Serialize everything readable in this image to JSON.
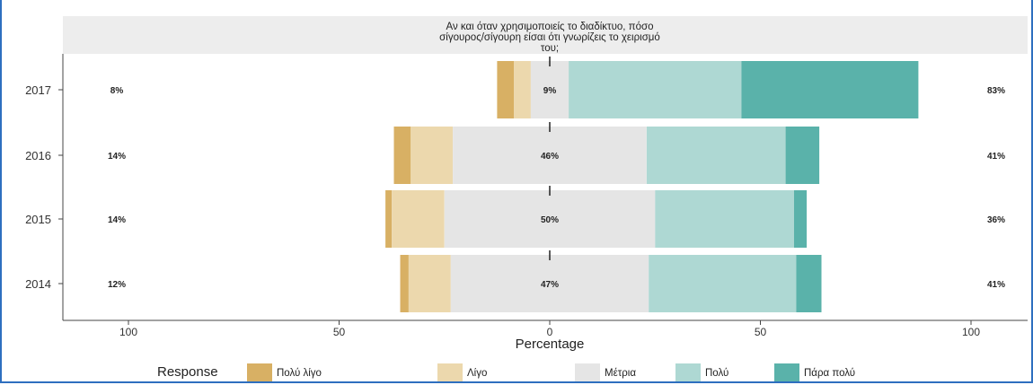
{
  "chart_data": {
    "type": "bar",
    "subtype": "diverging-stacked-likert",
    "orientation": "horizontal",
    "title_lines": [
      "Αν και όταν χρησιμοποιείς το διαδίκτυο, πόσο",
      "σίγουρος/σίγουρη είσαι ότι γνωρίζεις το χειρισμό",
      "του;"
    ],
    "xlabel": "Percentage",
    "ylabel": "",
    "xlim": [
      -100,
      100
    ],
    "xticks": [
      -100,
      -50,
      0,
      50,
      100
    ],
    "xtick_labels": [
      "100",
      "50",
      "0",
      "50",
      "100"
    ],
    "categories": [
      "2017",
      "2016",
      "2015",
      "2014"
    ],
    "responses": [
      "Πολύ λίγο",
      "Λίγο",
      "Μέτρια",
      "Πολύ",
      "Πάρα πολύ"
    ],
    "colors": {
      "Πολύ λίγο": "#d8b064",
      "Λίγο": "#ecd8ad",
      "Μέτρια": "#e5e5e5",
      "Πολύ": "#aed8d3",
      "Πάρα πολύ": "#5ab2aa",
      "panel": "#ededed",
      "axis": "#444444",
      "frame": "#2e6fbf"
    },
    "series": [
      {
        "name": "Πολύ λίγο",
        "values": [
          4,
          4,
          1.5,
          2
        ]
      },
      {
        "name": "Λίγο",
        "values": [
          4,
          10,
          12.5,
          10
        ]
      },
      {
        "name": "Μέτρια",
        "values": [
          9,
          46,
          50,
          47
        ]
      },
      {
        "name": "Πολύ",
        "values": [
          41,
          33,
          33,
          35
        ]
      },
      {
        "name": "Πάρα πολύ",
        "values": [
          42,
          8,
          3,
          6
        ]
      }
    ],
    "left_labels": [
      "8%",
      "14%",
      "14%",
      "12%"
    ],
    "center_labels": [
      "9%",
      "46%",
      "50%",
      "47%"
    ],
    "right_labels": [
      "83%",
      "41%",
      "36%",
      "41%"
    ],
    "legend": {
      "title": "Response",
      "position": "bottom",
      "items": [
        "Πολύ λίγο",
        "Λίγο",
        "Μέτρια",
        "Πολύ",
        "Πάρα πολύ"
      ]
    },
    "grid": false
  }
}
